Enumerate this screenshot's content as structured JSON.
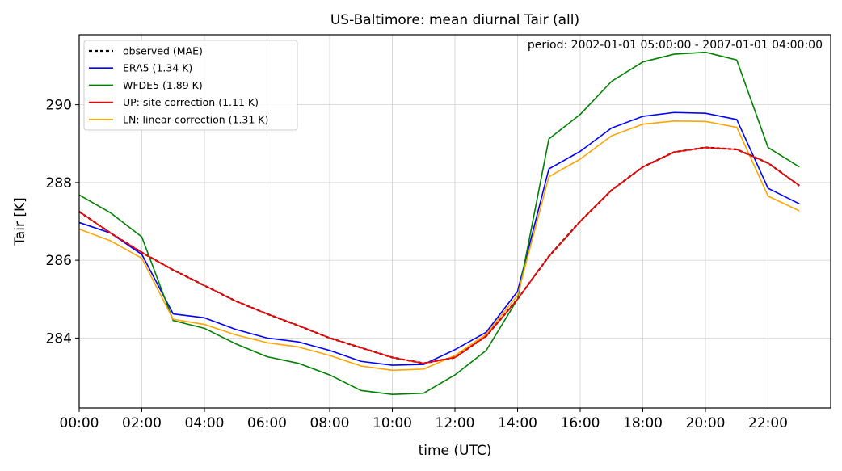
{
  "chart_data": {
    "type": "line",
    "title": "US-Baltimore: mean diurnal Tair (all)",
    "annotation": "period: 2002-01-01 05:00:00 - 2007-01-01 04:00:00",
    "xlabel": "time (UTC)",
    "ylabel": "Tair [K]",
    "xlim": [
      0,
      24
    ],
    "ylim": [
      282.2,
      291.8
    ],
    "xticks": [
      0,
      2,
      4,
      6,
      8,
      10,
      12,
      14,
      16,
      18,
      20,
      22
    ],
    "xtick_labels": [
      "00:00",
      "02:00",
      "04:00",
      "06:00",
      "08:00",
      "10:00",
      "12:00",
      "14:00",
      "16:00",
      "18:00",
      "20:00",
      "22:00"
    ],
    "yticks": [
      284,
      286,
      288,
      290
    ],
    "ytick_labels": [
      "284",
      "286",
      "288",
      "290"
    ],
    "grid": true,
    "legend_position": "top-left",
    "x": [
      0,
      1,
      2,
      3,
      4,
      5,
      6,
      7,
      8,
      9,
      10,
      11,
      12,
      13,
      14,
      15,
      16,
      17,
      18,
      19,
      20,
      21,
      22,
      23
    ],
    "series": [
      {
        "name": "observed (MAE)",
        "color": "#000000",
        "dashed": true,
        "values": [
          287.25,
          286.7,
          286.2,
          285.75,
          285.35,
          284.95,
          284.62,
          284.32,
          284.0,
          283.75,
          283.5,
          283.35,
          283.5,
          284.05,
          285.0,
          286.1,
          287.0,
          287.8,
          288.4,
          288.78,
          288.9,
          288.85,
          288.5,
          287.92
        ]
      },
      {
        "name": "ERA5 (1.34 K)",
        "color": "#0000ff",
        "dashed": false,
        "values": [
          286.97,
          286.7,
          286.15,
          284.62,
          284.52,
          284.22,
          284.0,
          283.9,
          283.68,
          283.4,
          283.3,
          283.32,
          283.7,
          284.15,
          285.2,
          288.35,
          288.8,
          289.4,
          289.7,
          289.8,
          289.78,
          289.62,
          287.85,
          287.45
        ]
      },
      {
        "name": "WFDE5 (1.89 K)",
        "color": "#008000",
        "dashed": false,
        "values": [
          287.68,
          287.22,
          286.6,
          284.45,
          284.25,
          283.85,
          283.52,
          283.35,
          283.05,
          282.65,
          282.55,
          282.58,
          283.05,
          283.68,
          285.0,
          289.12,
          289.75,
          290.6,
          291.1,
          291.3,
          291.35,
          291.15,
          288.9,
          288.4
        ]
      },
      {
        "name": "UP: site correction (1.11 K)",
        "color": "#ff0000",
        "dashed": false,
        "values": [
          287.25,
          286.7,
          286.2,
          285.75,
          285.35,
          284.95,
          284.62,
          284.32,
          284.0,
          283.75,
          283.5,
          283.35,
          283.5,
          284.05,
          285.0,
          286.1,
          287.0,
          287.8,
          288.4,
          288.78,
          288.9,
          288.85,
          288.5,
          287.92
        ]
      },
      {
        "name": "LN: linear correction (1.31 K)",
        "color": "#ffa500",
        "dashed": false,
        "values": [
          286.8,
          286.5,
          286.05,
          284.48,
          284.35,
          284.08,
          283.88,
          283.77,
          283.55,
          283.28,
          283.17,
          283.2,
          283.55,
          284.1,
          285.1,
          288.15,
          288.6,
          289.2,
          289.5,
          289.58,
          289.57,
          289.42,
          287.65,
          287.27
        ]
      }
    ],
    "draw_order": [
      0,
      1,
      2,
      4,
      3
    ]
  }
}
